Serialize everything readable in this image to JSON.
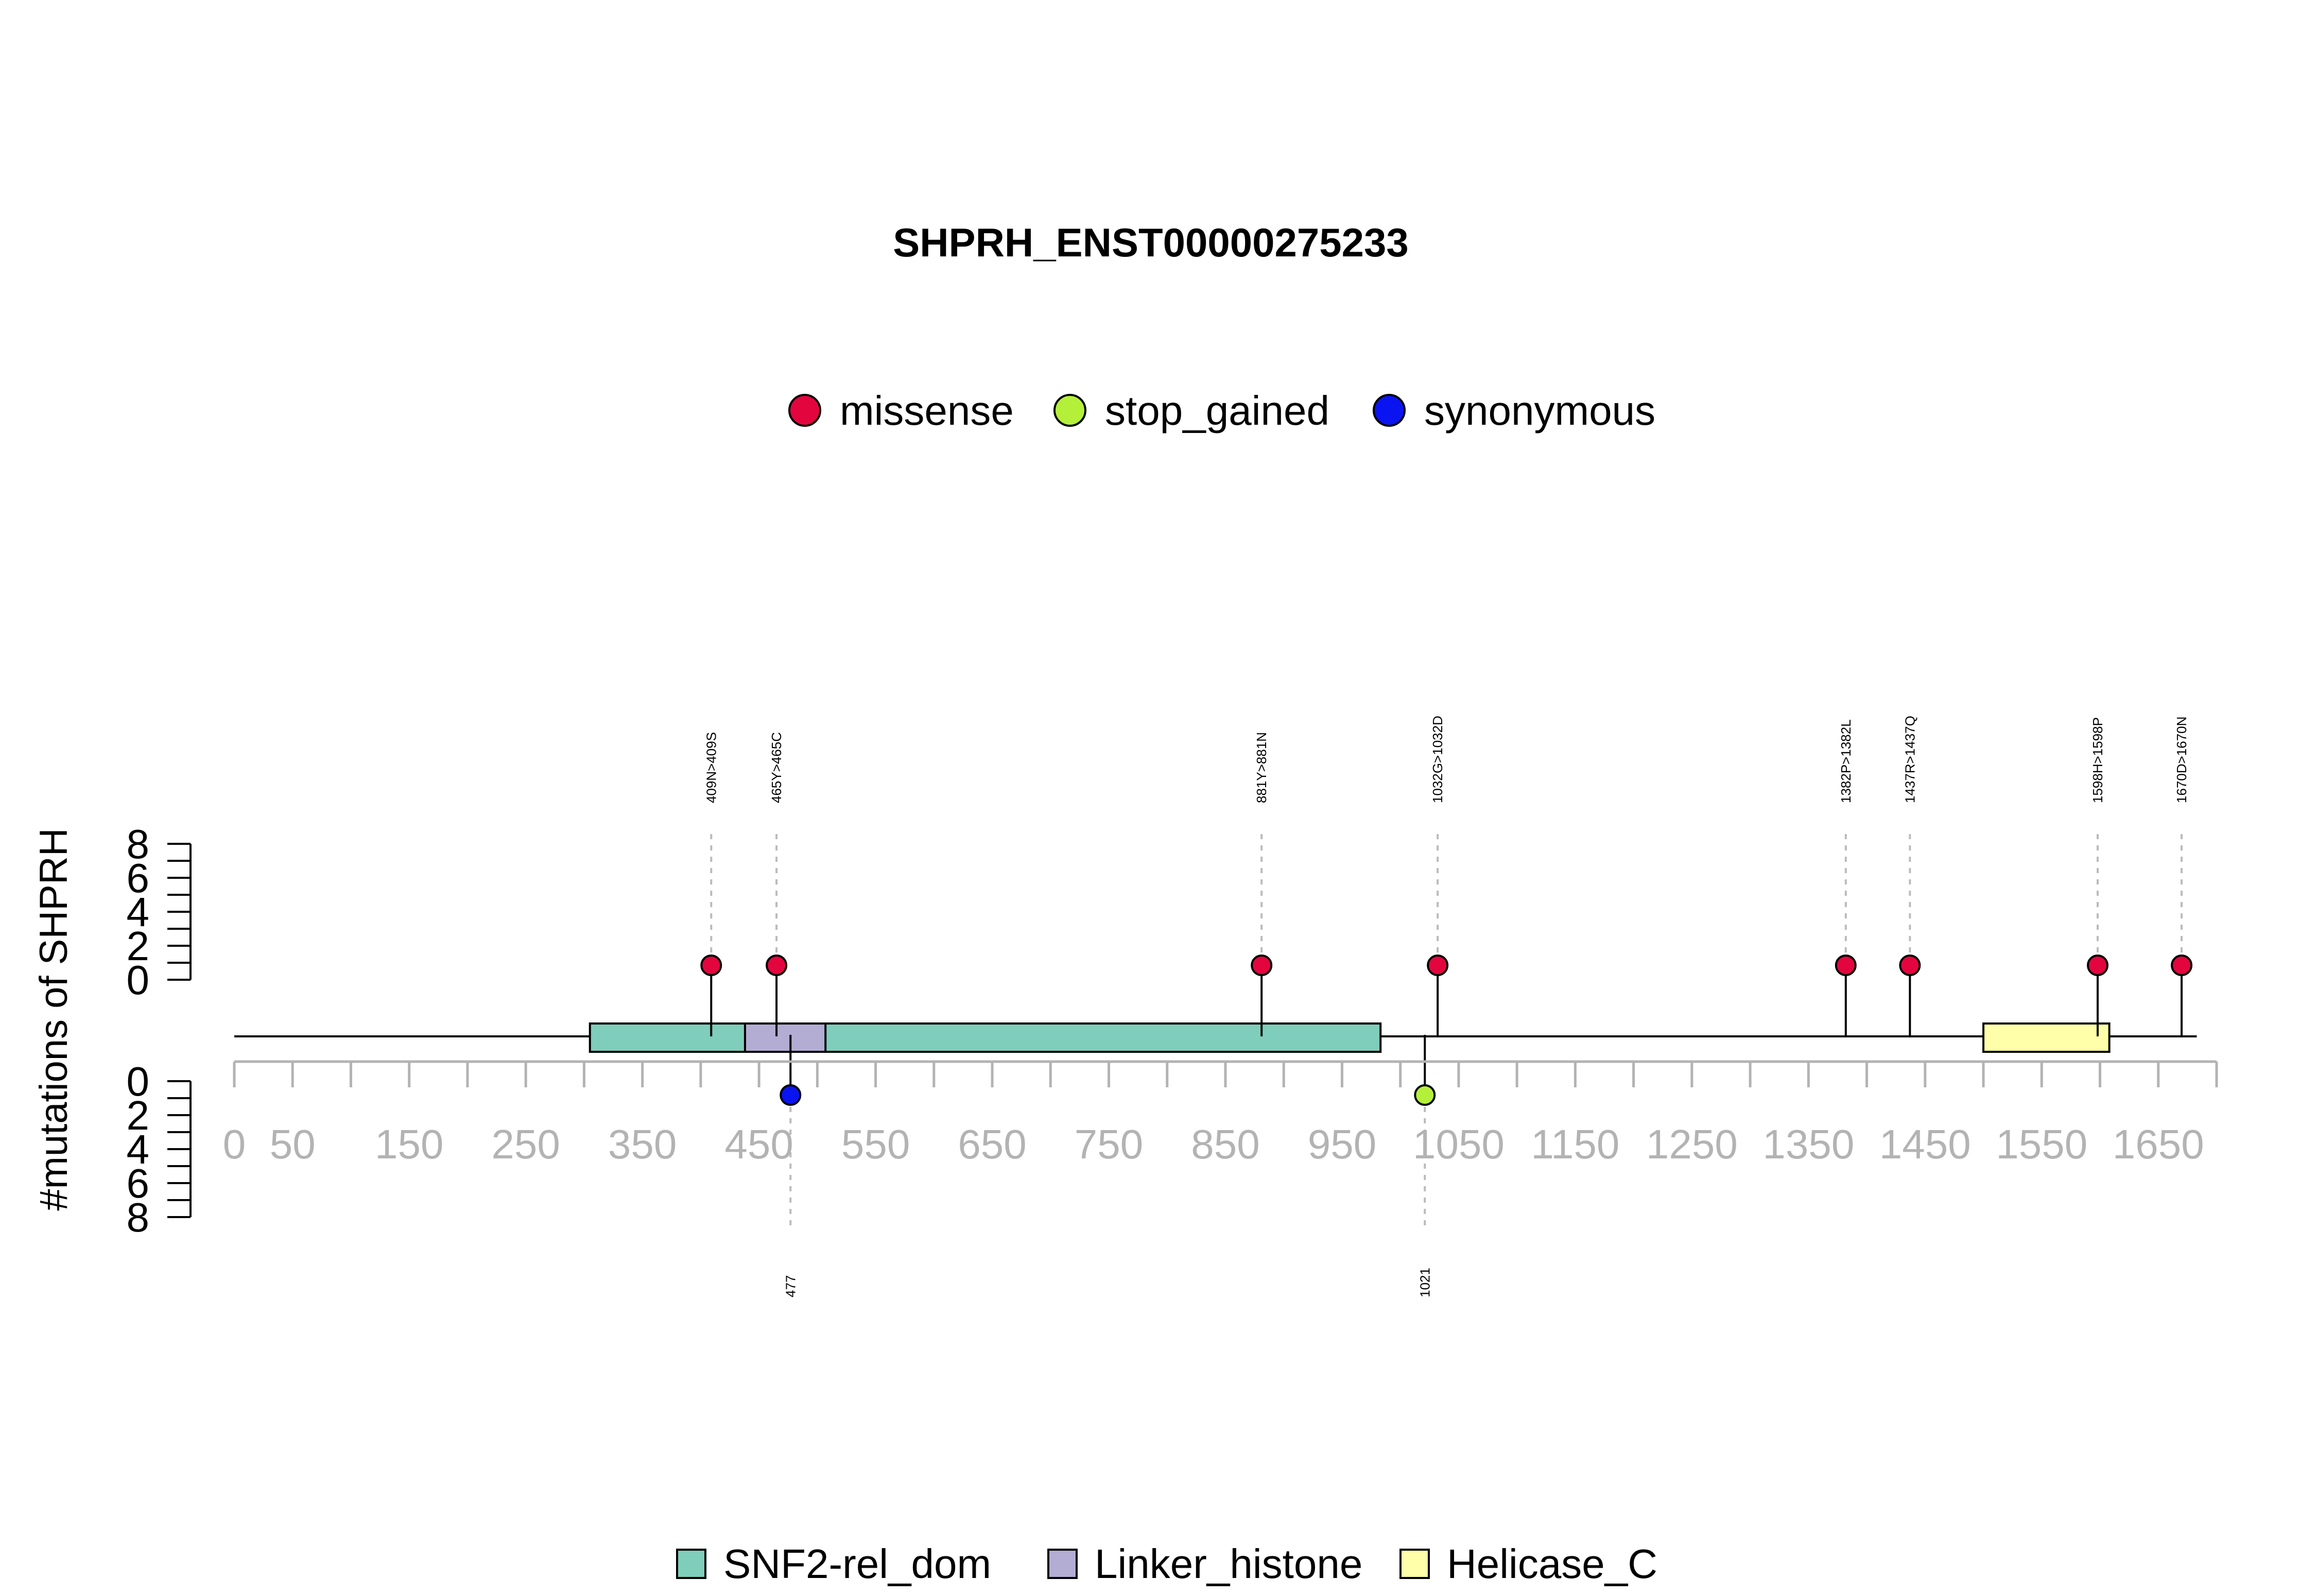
{
  "chart_data": {
    "type": "lollipop",
    "title": "SHPRH_ENST00000275233",
    "ylabel": "#mutations of SHPRH",
    "protein_length": 1683,
    "x_ticks": [
      0,
      50,
      150,
      250,
      350,
      450,
      550,
      650,
      750,
      850,
      950,
      1050,
      1150,
      1250,
      1350,
      1450,
      1550,
      1650
    ],
    "x_minor_ticks": [
      0,
      50,
      100,
      150,
      200,
      250,
      300,
      350,
      400,
      450,
      500,
      550,
      600,
      650,
      700,
      750,
      800,
      850,
      900,
      950,
      1000,
      1050,
      1100,
      1150,
      1200,
      1250,
      1300,
      1350,
      1400,
      1450,
      1500,
      1550,
      1600,
      1650,
      1700
    ],
    "y_ticks": [
      0,
      2,
      4,
      6,
      8
    ],
    "ylim": [
      0,
      8
    ],
    "mutation_legend": [
      {
        "name": "missense",
        "color": "#E3063E"
      },
      {
        "name": "stop_gained",
        "color": "#B4F03A"
      },
      {
        "name": "synonymous",
        "color": "#0A14F0"
      }
    ],
    "domain_legend": [
      {
        "name": "SNF2-rel_dom",
        "color": "#7FCDBB"
      },
      {
        "name": "Linker_histone",
        "color": "#B3ADD4"
      },
      {
        "name": "Helicase_C",
        "color": "#FFFFAA"
      }
    ],
    "domains": [
      {
        "name": "SNF2-rel_dom",
        "start": 305,
        "end": 983,
        "color": "#7FCDBB"
      },
      {
        "name": "Linker_histone",
        "start": 438,
        "end": 507,
        "color": "#B3ADD4"
      },
      {
        "name": "Helicase_C",
        "start": 1500,
        "end": 1608,
        "color": "#FFFFAA"
      }
    ],
    "mutations_top": [
      {
        "pos": 409,
        "label": "409N>409S",
        "count": 1,
        "type": "missense",
        "color": "#E3063E"
      },
      {
        "pos": 465,
        "label": "465Y>465C",
        "count": 1,
        "type": "missense",
        "color": "#E3063E"
      },
      {
        "pos": 881,
        "label": "881Y>881N",
        "count": 1,
        "type": "missense",
        "color": "#E3063E"
      },
      {
        "pos": 1032,
        "label": "1032G>1032D",
        "count": 1,
        "type": "missense",
        "color": "#E3063E"
      },
      {
        "pos": 1382,
        "label": "1382P>1382L",
        "count": 1,
        "type": "missense",
        "color": "#E3063E"
      },
      {
        "pos": 1437,
        "label": "1437R>1437Q",
        "count": 1,
        "type": "missense",
        "color": "#E3063E"
      },
      {
        "pos": 1598,
        "label": "1598H>1598P",
        "count": 1,
        "type": "missense",
        "color": "#E3063E"
      },
      {
        "pos": 1670,
        "label": "1670D>1670N",
        "count": 1,
        "type": "missense",
        "color": "#E3063E"
      }
    ],
    "mutations_bottom": [
      {
        "pos": 477,
        "label": "477",
        "count": 1,
        "type": "synonymous",
        "color": "#0A14F0"
      },
      {
        "pos": 1021,
        "label": "1021",
        "count": 1,
        "type": "stop_gained",
        "color": "#B4F03A"
      }
    ]
  }
}
